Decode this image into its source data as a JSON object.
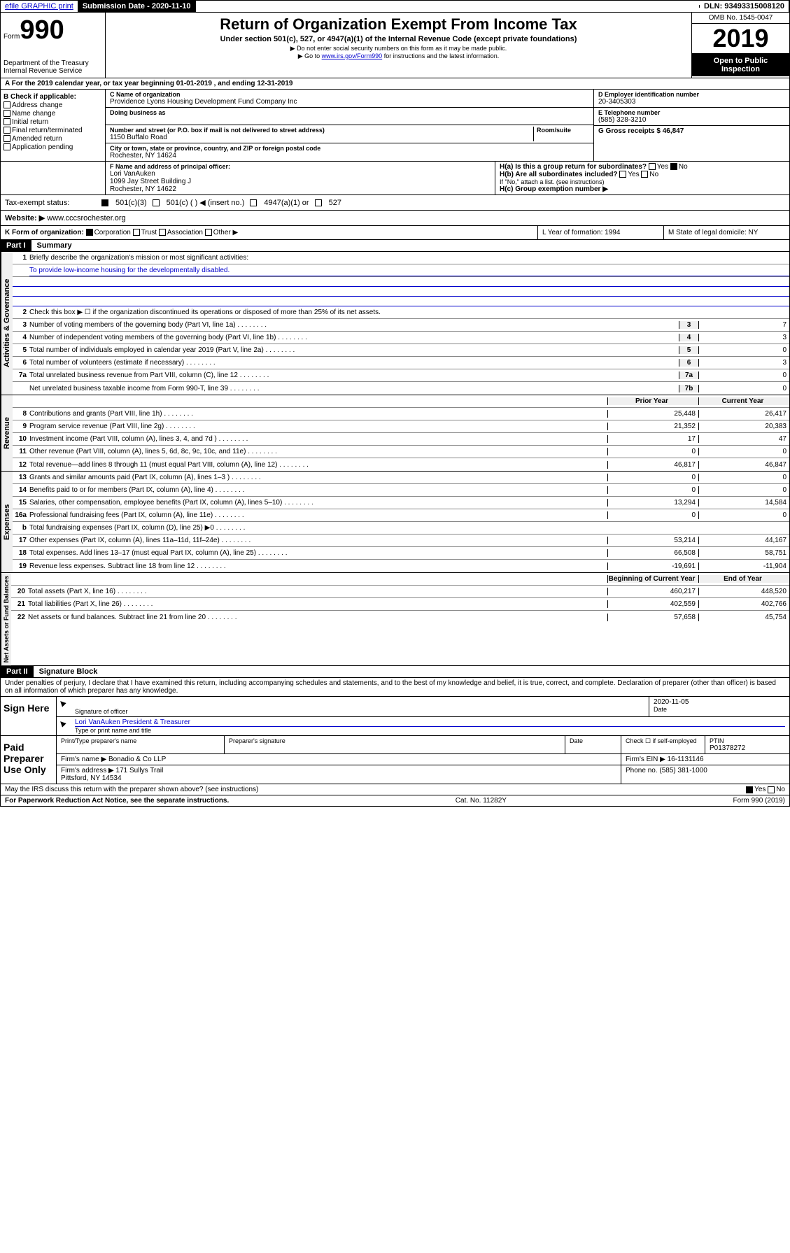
{
  "topbar": {
    "efile": "efile GRAPHIC print",
    "submission_label": "Submission Date - 2020-11-10",
    "dln_label": "DLN: 93493315008120"
  },
  "header": {
    "form_prefix": "Form",
    "form_number": "990",
    "dept": "Department of the Treasury\nInternal Revenue Service",
    "title": "Return of Organization Exempt From Income Tax",
    "subtitle": "Under section 501(c), 527, or 4947(a)(1) of the Internal Revenue Code (except private foundations)",
    "note1": "▶ Do not enter social security numbers on this form as it may be made public.",
    "note2_pre": "▶ Go to ",
    "note2_link": "www.irs.gov/Form990",
    "note2_post": " for instructions and the latest information.",
    "omb": "OMB No. 1545-0047",
    "year": "2019",
    "open": "Open to Public Inspection"
  },
  "period": "A For the 2019 calendar year, or tax year beginning 01-01-2019    , and ending 12-31-2019",
  "sectionB": {
    "label": "B Check if applicable:",
    "items": [
      "Address change",
      "Name change",
      "Initial return",
      "Final return/terminated",
      "Amended return",
      "Application pending"
    ]
  },
  "sectionC": {
    "name_label": "C Name of organization",
    "name": "Providence Lyons Housing Development Fund Company Inc",
    "dba_label": "Doing business as",
    "addr_label": "Number and street (or P.O. box if mail is not delivered to street address)",
    "room_label": "Room/suite",
    "addr": "1150 Buffalo Road",
    "city_label": "City or town, state or province, country, and ZIP or foreign postal code",
    "city": "Rochester, NY  14624"
  },
  "sectionD": {
    "label": "D Employer identification number",
    "value": "20-3405303"
  },
  "sectionE": {
    "label": "E Telephone number",
    "value": "(585) 328-3210"
  },
  "sectionG": {
    "label": "G Gross receipts $ 46,847"
  },
  "sectionF": {
    "label": "F  Name and address of principal officer:",
    "name": "Lori VanAuken",
    "addr": "1099 Jay Street Building J\nRochester, NY  14622"
  },
  "sectionH": {
    "a_label": "H(a)  Is this a group return for subordinates?",
    "b_label": "H(b)  Are all subordinates included?",
    "b_note": "If \"No,\" attach a list. (see instructions)",
    "c_label": "H(c)  Group exemption number ▶"
  },
  "taxStatus": {
    "label": "Tax-exempt status:",
    "opt1": "501(c)(3)",
    "opt2": "501(c) (  ) ◀ (insert no.)",
    "opt3": "4947(a)(1) or",
    "opt4": "527"
  },
  "website": {
    "label": "Website: ▶",
    "value": "www.cccsrochester.org"
  },
  "sectionK": {
    "label": "K Form of organization:",
    "opts": [
      "Corporation",
      "Trust",
      "Association",
      "Other ▶"
    ]
  },
  "sectionL": {
    "label": "L Year of formation: 1994"
  },
  "sectionM": {
    "label": "M State of legal domicile: NY"
  },
  "parts": {
    "p1": "Part I",
    "p1_title": "Summary",
    "p2": "Part II",
    "p2_title": "Signature Block"
  },
  "summary": {
    "l1": "Briefly describe the organization's mission or most significant activities:",
    "l1_text": "To provide low-income housing for the developmentally disabled.",
    "l2": "Check this box ▶ ☐  if the organization discontinued its operations or disposed of more than 25% of its net assets.",
    "lines": [
      {
        "n": "3",
        "t": "Number of voting members of the governing body (Part VI, line 1a)",
        "box": "3",
        "v": "7"
      },
      {
        "n": "4",
        "t": "Number of independent voting members of the governing body (Part VI, line 1b)",
        "box": "4",
        "v": "3"
      },
      {
        "n": "5",
        "t": "Total number of individuals employed in calendar year 2019 (Part V, line 2a)",
        "box": "5",
        "v": "0"
      },
      {
        "n": "6",
        "t": "Total number of volunteers (estimate if necessary)",
        "box": "6",
        "v": "3"
      },
      {
        "n": "7a",
        "t": "Total unrelated business revenue from Part VIII, column (C), line 12",
        "box": "7a",
        "v": "0"
      },
      {
        "n": "",
        "t": "Net unrelated business taxable income from Form 990-T, line 39",
        "box": "7b",
        "v": "0"
      }
    ],
    "col_prior": "Prior Year",
    "col_current": "Current Year",
    "revenue": [
      {
        "n": "8",
        "t": "Contributions and grants (Part VIII, line 1h)",
        "p": "25,448",
        "c": "26,417"
      },
      {
        "n": "9",
        "t": "Program service revenue (Part VIII, line 2g)",
        "p": "21,352",
        "c": "20,383"
      },
      {
        "n": "10",
        "t": "Investment income (Part VIII, column (A), lines 3, 4, and 7d )",
        "p": "17",
        "c": "47"
      },
      {
        "n": "11",
        "t": "Other revenue (Part VIII, column (A), lines 5, 6d, 8c, 9c, 10c, and 11e)",
        "p": "0",
        "c": "0"
      },
      {
        "n": "12",
        "t": "Total revenue—add lines 8 through 11 (must equal Part VIII, column (A), line 12)",
        "p": "46,817",
        "c": "46,847"
      }
    ],
    "expenses": [
      {
        "n": "13",
        "t": "Grants and similar amounts paid (Part IX, column (A), lines 1–3 )",
        "p": "0",
        "c": "0"
      },
      {
        "n": "14",
        "t": "Benefits paid to or for members (Part IX, column (A), line 4)",
        "p": "0",
        "c": "0"
      },
      {
        "n": "15",
        "t": "Salaries, other compensation, employee benefits (Part IX, column (A), lines 5–10)",
        "p": "13,294",
        "c": "14,584"
      },
      {
        "n": "16a",
        "t": "Professional fundraising fees (Part IX, column (A), line 11e)",
        "p": "0",
        "c": "0"
      },
      {
        "n": "b",
        "t": "Total fundraising expenses (Part IX, column (D), line 25) ▶0",
        "p": "",
        "c": ""
      },
      {
        "n": "17",
        "t": "Other expenses (Part IX, column (A), lines 11a–11d, 11f–24e)",
        "p": "53,214",
        "c": "44,167"
      },
      {
        "n": "18",
        "t": "Total expenses. Add lines 13–17 (must equal Part IX, column (A), line 25)",
        "p": "66,508",
        "c": "58,751"
      },
      {
        "n": "19",
        "t": "Revenue less expenses. Subtract line 18 from line 12",
        "p": "-19,691",
        "c": "-11,904"
      }
    ],
    "col_begin": "Beginning of Current Year",
    "col_end": "End of Year",
    "netassets": [
      {
        "n": "20",
        "t": "Total assets (Part X, line 16)",
        "p": "460,217",
        "c": "448,520"
      },
      {
        "n": "21",
        "t": "Total liabilities (Part X, line 26)",
        "p": "402,559",
        "c": "402,766"
      },
      {
        "n": "22",
        "t": "Net assets or fund balances. Subtract line 21 from line 20",
        "p": "57,658",
        "c": "45,754"
      }
    ]
  },
  "vert": {
    "gov": "Activities & Governance",
    "rev": "Revenue",
    "exp": "Expenses",
    "net": "Net Assets or Fund Balances"
  },
  "sigblock": {
    "perjury": "Under penalties of perjury, I declare that I have examined this return, including accompanying schedules and statements, and to the best of my knowledge and belief, it is true, correct, and complete. Declaration of preparer (other than officer) is based on all information of which preparer has any knowledge.",
    "sign_here": "Sign Here",
    "sig_officer": "Signature of officer",
    "date": "Date",
    "date_val": "2020-11-05",
    "name_title": "Lori VanAuken  President & Treasurer",
    "type_name": "Type or print name and title",
    "paid_prep": "Paid Preparer Use Only",
    "prep_name_label": "Print/Type preparer's name",
    "prep_sig_label": "Preparer's signature",
    "date_label": "Date",
    "check_self": "Check ☐ if self-employed",
    "ptin_label": "PTIN",
    "ptin": "P01378272",
    "firm_name_label": "Firm's name    ▶",
    "firm_name": "Bonadio & Co LLP",
    "firm_ein_label": "Firm's EIN ▶",
    "firm_ein": "16-1131146",
    "firm_addr_label": "Firm's address ▶",
    "firm_addr": "171 Sullys Trail",
    "firm_city": "Pittsford, NY  14534",
    "phone_label": "Phone no.",
    "phone": "(585) 381-1000",
    "discuss": "May the IRS discuss this return with the preparer shown above? (see instructions)",
    "yes": "Yes",
    "no": "No"
  },
  "footer": {
    "left": "For Paperwork Reduction Act Notice, see the separate instructions.",
    "mid": "Cat. No. 11282Y",
    "right": "Form 990 (2019)"
  }
}
